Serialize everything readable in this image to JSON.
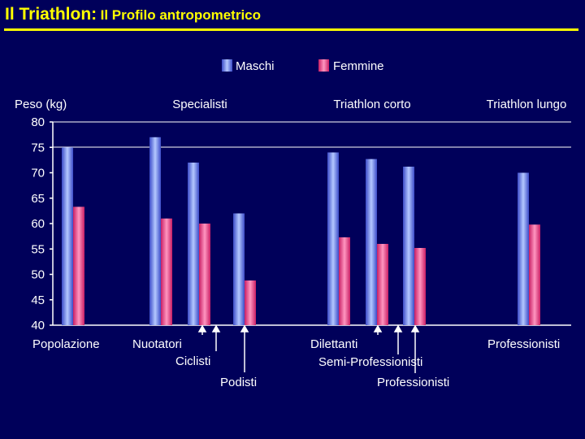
{
  "title": {
    "main": "Il Triathlon:",
    "sub": "Il Profilo antropometrico"
  },
  "colors": {
    "background": "#00005a",
    "title": "#ffff00",
    "male": "#7f9fff",
    "female": "#ff5f9f",
    "text": "#ffffff"
  },
  "chart_data": {
    "type": "bar",
    "title": "Il Profilo antropometrico",
    "ylabel": "Peso (kg)",
    "ylim": [
      40,
      80
    ],
    "yticks": [
      80,
      75,
      70,
      65,
      60,
      55,
      50,
      45,
      40
    ],
    "legend": [
      {
        "name": "Maschi",
        "color": "#7f9fff"
      },
      {
        "name": "Femmine",
        "color": "#ff5f9f"
      }
    ],
    "group_headers": [
      "Specialisti",
      "Triathlon corto",
      "Triathlon lungo"
    ],
    "categories": [
      "Popolazione",
      "Nuotatori",
      "Ciclisti",
      "Podisti",
      "Dilettanti",
      "Semi-Professionisti",
      "Professionisti",
      "Professionisti"
    ],
    "series": [
      {
        "name": "Maschi",
        "values": [
          75,
          77,
          72,
          62,
          74,
          72.7,
          71.2,
          70
        ]
      },
      {
        "name": "Femmine",
        "values": [
          63.3,
          61,
          60,
          48.8,
          57.3,
          56,
          55.2,
          59.8
        ]
      }
    ]
  }
}
